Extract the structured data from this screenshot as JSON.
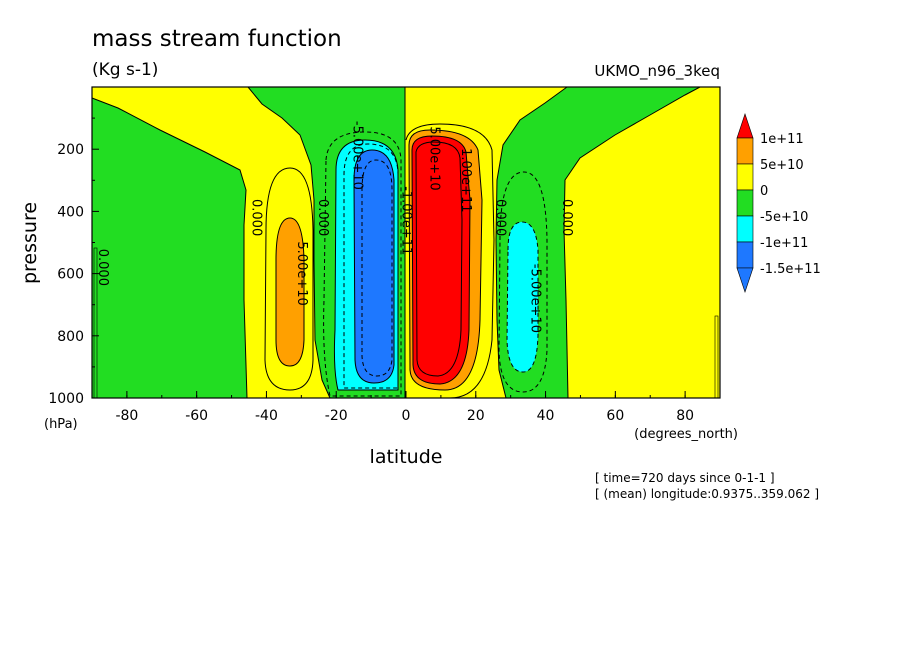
{
  "header": {
    "title": "mass stream function",
    "units": "(Kg s-1)",
    "run_name": "UKMO_n96_3keq"
  },
  "footer": {
    "time_line": "[ time=720 days since 0-1-1 ]",
    "longitude_line": "[ (mean) longitude:0.9375..359.062 ]"
  },
  "colors": {
    "level_lt_-1.5e11": "#1e78ff",
    "level_-1.5e11_-1e11": "#1e78ff",
    "level_-1e11_-5e10": "#00ffff",
    "level_-5e10_0": "#22dd22",
    "level_0_5e10": "#ffff00",
    "level_5e10_1e11": "#ffa000",
    "level_gt_1e11": "#ff0000"
  },
  "chart_data": {
    "type": "heatmap",
    "title": "mass stream function",
    "subtitle": "(Kg s-1)",
    "xlabel": "latitude",
    "xunits": "(degrees_north)",
    "ylabel": "pressure",
    "yunits": "(hPa)",
    "xlim": [
      -90,
      90
    ],
    "ylim": [
      1000,
      0
    ],
    "y_axis_inverted": true,
    "x_ticks": [
      -80,
      -60,
      -40,
      -20,
      0,
      20,
      40,
      60,
      80
    ],
    "y_ticks": [
      200,
      400,
      600,
      800,
      1000
    ],
    "legend": {
      "placement": "right",
      "labels": [
        "1e+11",
        "5e+10",
        "0",
        "-5e+10",
        "-1e+11",
        "-1.5e+11"
      ]
    },
    "contour_labels": [
      {
        "text": "0.000",
        "lat": -88,
        "p": 580
      },
      {
        "text": "0.000",
        "lat": -44,
        "p": 420
      },
      {
        "text": "0.000",
        "lat": -25,
        "p": 420
      },
      {
        "text": "5.00e+10",
        "lat": -31,
        "p": 600
      },
      {
        "text": "-5.00e+10",
        "lat": -15,
        "p": 220
      },
      {
        "text": "-1.00e+11",
        "lat": -1,
        "p": 430
      },
      {
        "text": "5.00e+10",
        "lat": 7,
        "p": 230
      },
      {
        "text": "1.00e+11",
        "lat": 16,
        "p": 300
      },
      {
        "text": "0.000",
        "lat": 26,
        "p": 420
      },
      {
        "text": "-5.00e+10",
        "lat": 36,
        "p": 680
      },
      {
        "text": "0.000",
        "lat": 45,
        "p": 420
      }
    ]
  }
}
